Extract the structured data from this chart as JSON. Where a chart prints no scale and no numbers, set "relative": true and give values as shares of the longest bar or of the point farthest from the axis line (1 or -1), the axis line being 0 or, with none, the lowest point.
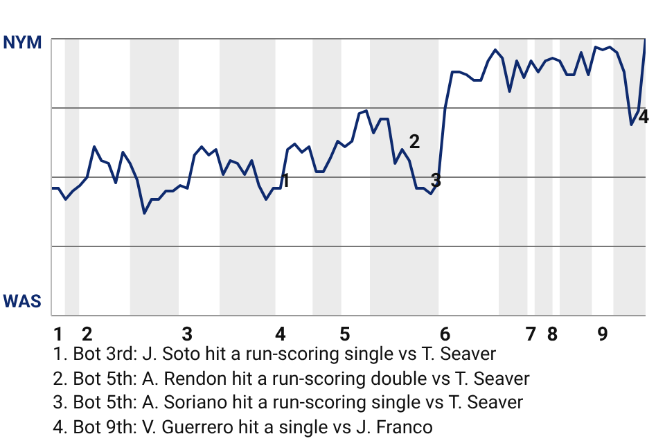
{
  "chart_data": {
    "type": "line",
    "relative": true,
    "categories": [
      null,
      "1",
      null,
      null,
      null,
      "2",
      null,
      null,
      null,
      null,
      null,
      null,
      null,
      null,
      null,
      null,
      null,
      null,
      null,
      "3",
      null,
      null,
      null,
      null,
      null,
      null,
      null,
      null,
      null,
      null,
      null,
      null,
      "4",
      null,
      null,
      null,
      null,
      null,
      null,
      null,
      null,
      "5",
      null,
      null,
      null,
      null,
      null,
      null,
      null,
      null,
      null,
      null,
      null,
      null,
      null,
      "6",
      null,
      null,
      null,
      null,
      null,
      null,
      null,
      null,
      null,
      null,
      null,
      "7",
      null,
      null,
      "8",
      null,
      null,
      null,
      null,
      null,
      null,
      "9",
      null,
      null,
      null,
      null,
      null,
      null
    ],
    "series": [
      {
        "color": "#0e2a6e",
        "values": [
          0.46,
          0.46,
          0.42,
          0.45,
          0.47,
          0.5,
          0.61,
          0.56,
          0.55,
          0.48,
          0.59,
          0.55,
          0.49,
          0.37,
          0.42,
          0.42,
          0.45,
          0.45,
          0.47,
          0.46,
          0.58,
          0.61,
          0.58,
          0.6,
          0.51,
          0.56,
          0.55,
          0.51,
          0.56,
          0.47,
          0.42,
          0.46,
          0.46,
          0.6,
          0.62,
          0.59,
          0.61,
          0.52,
          0.52,
          0.57,
          0.63,
          0.61,
          0.63,
          0.73,
          0.74,
          0.66,
          0.71,
          0.71,
          0.55,
          0.6,
          0.56,
          0.46,
          0.46,
          0.44,
          0.48,
          0.75,
          0.88,
          0.88,
          0.87,
          0.85,
          0.85,
          0.92,
          0.96,
          0.93,
          0.81,
          0.92,
          0.86,
          0.92,
          0.88,
          0.92,
          0.93,
          0.92,
          0.87,
          0.87,
          0.95,
          0.87,
          0.97,
          0.96,
          0.97,
          0.95,
          0.88,
          0.69,
          0.74,
          1.0
        ]
      }
    ],
    "grid": false,
    "legend": false,
    "marker": "none",
    "line_style": "solid",
    "ref_lines": [
      {
        "axis": "y",
        "value": 0.25,
        "color": "#777777"
      },
      {
        "axis": "y",
        "value": 0.5,
        "color": "#777777"
      },
      {
        "axis": "y",
        "value": 0.75,
        "color": "#777777"
      },
      {
        "axis": "y",
        "value": 1,
        "color": "#777777"
      }
    ],
    "annotations": [
      "NYM",
      "WAS",
      "1",
      "2",
      "3",
      "4",
      "1. Bot 3rd: J. Soto hit a run-scoring single vs T. Seaver",
      "2. Bot 5th: A. Rendon hit a run-scoring double vs T. Seaver",
      "3. Bot 5th: A. Soriano hit a run-scoring single vs T. Seaver",
      "4. Bot 9th: V. Guerrero hit a single vs J. Franco"
    ]
  }
}
